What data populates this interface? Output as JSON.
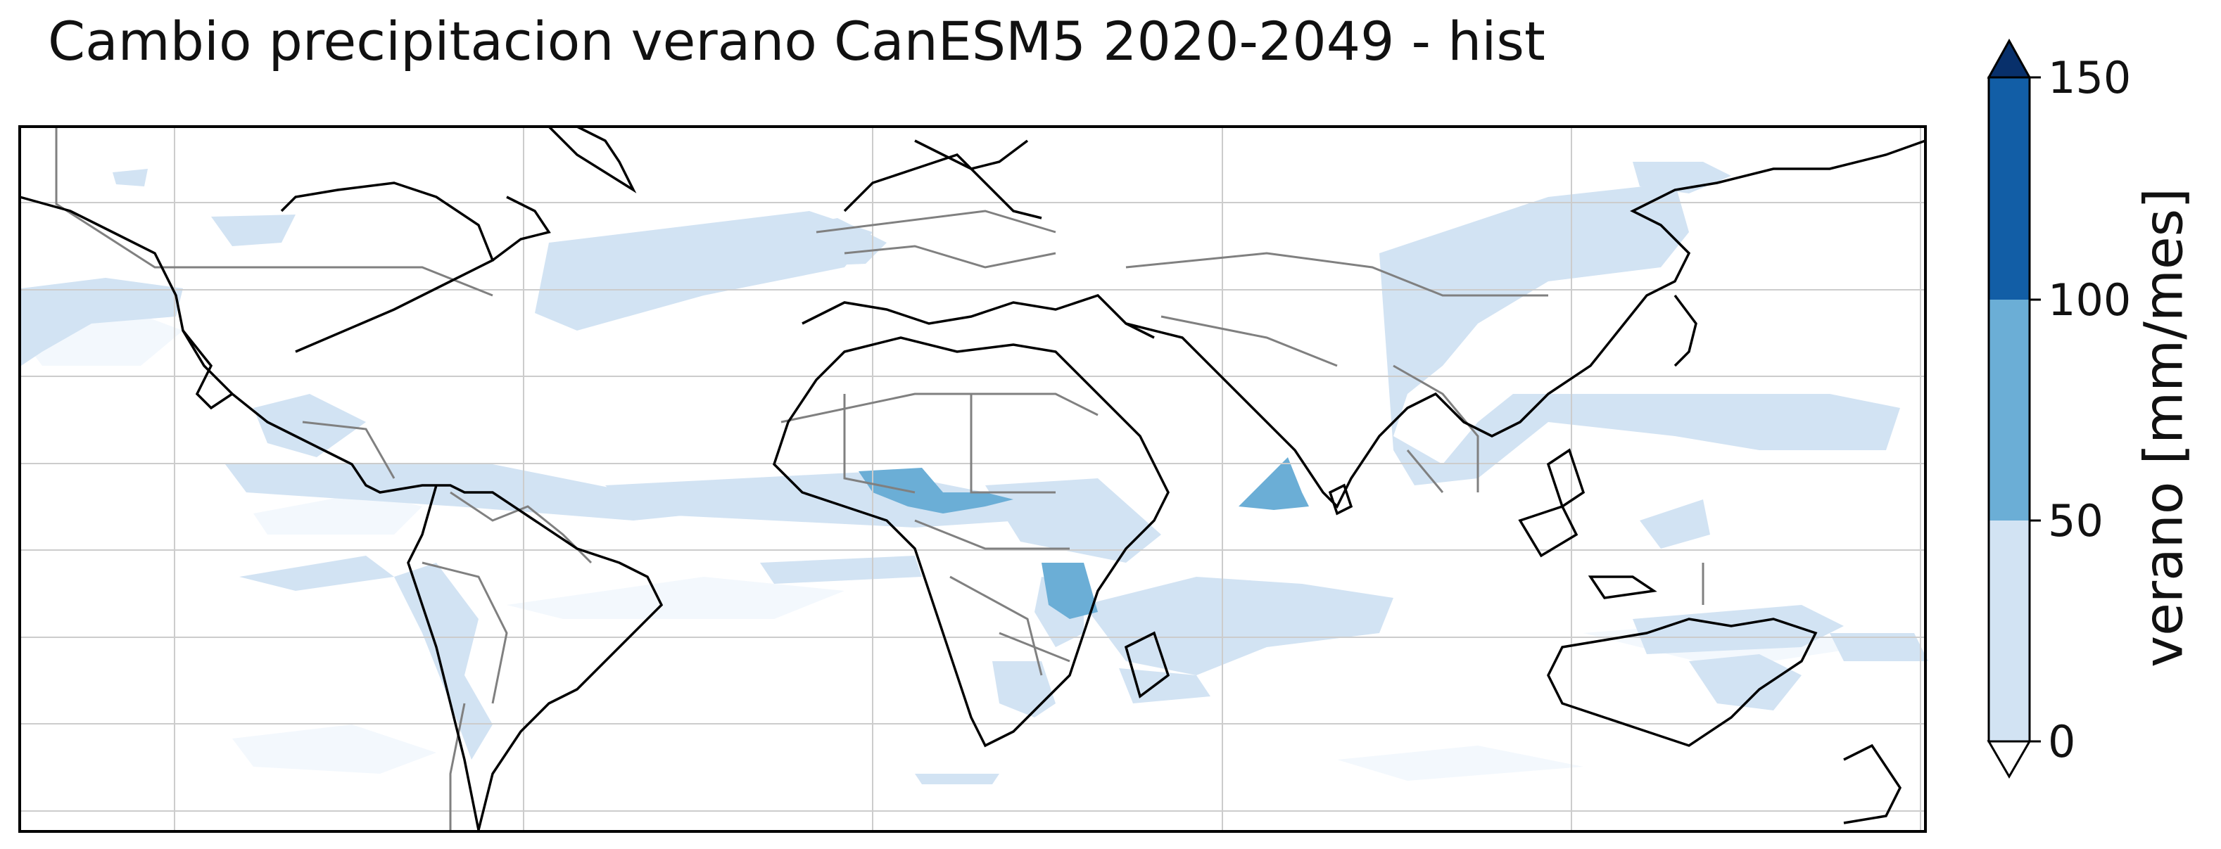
{
  "map": {
    "title": "Cambio precipitacion verano CanESM5 2020-2049 - hist",
    "projection": "equirectangular",
    "extent_deg": {
      "lon": [
        -180,
        180
      ],
      "lat": [
        -60,
        75
      ]
    },
    "colors": {
      "land_outline": "#000000",
      "borders": "#808080",
      "gridlines": "#cccccc",
      "frame": "#000000"
    }
  },
  "colorbar": {
    "label": "verano [mm/mes]",
    "ticks": [
      "0",
      "50",
      "100",
      "150"
    ],
    "bins": [
      {
        "range": [
          0,
          50
        ],
        "color": "#d2e3f3"
      },
      {
        "range": [
          50,
          100
        ],
        "color": "#6baed6"
      },
      {
        "range": [
          100,
          150
        ],
        "color": "#125ea6"
      }
    ],
    "over_color": "#08306b",
    "under_color": "#ffffff"
  }
}
